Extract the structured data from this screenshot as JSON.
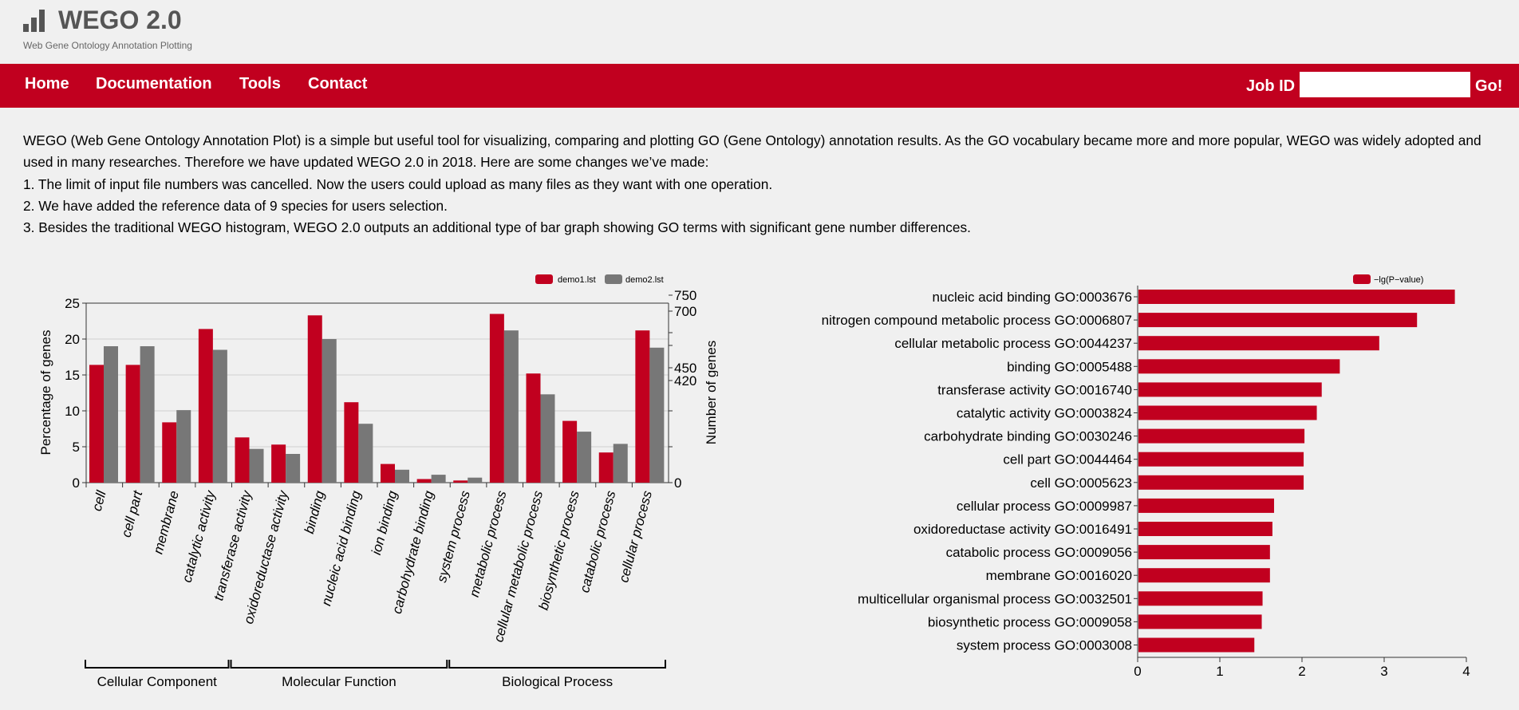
{
  "header": {
    "title": "WEGO 2.0",
    "subtitle": "Web Gene Ontology Annotation Plotting",
    "logo_icon": "bar-chart-logo-icon"
  },
  "nav": {
    "items": [
      {
        "label": "Home"
      },
      {
        "label": "Documentation"
      },
      {
        "label": "Tools"
      },
      {
        "label": "Contact"
      }
    ],
    "jobid_label": "Job ID",
    "jobid_value": "",
    "go_label": "Go!"
  },
  "intro": {
    "paragraphs": [
      "WEGO (Web Gene Ontology Annotation Plot) is a simple but useful tool for visualizing, comparing and plotting GO (Gene Ontology) annotation results. As the GO vocabulary became more and more popular, WEGO was widely adopted and used in many researches. Therefore we have updated WEGO 2.0 in 2018. Here are some changes we’ve made:",
      "1. The limit of input file numbers was cancelled. Now the users could upload as many files as they want with one operation.",
      "2. We have added the reference data of 9 species for users selection.",
      "3. Besides the traditional WEGO histogram, WEGO 2.0 outputs an additional type of bar graph showing GO terms with significant gene number differences."
    ]
  },
  "colors": {
    "brand": "#c1001f",
    "series1": "#c1001f",
    "series2": "#777777"
  },
  "chart_data": [
    {
      "type": "bar",
      "categories": [
        "cell",
        "cell part",
        "membrane",
        "catalytic activity",
        "transferase activity",
        "oxidoreductase activity",
        "binding",
        "nucleic acid binding",
        "ion binding",
        "carbohydrate binding",
        "system process",
        "metabolic process",
        "cellular metabolic process",
        "biosynthetic process",
        "catabolic process",
        "cellular process"
      ],
      "series": [
        {
          "name": "demo1.lst",
          "values": [
            16.4,
            16.4,
            8.4,
            21.4,
            6.3,
            5.3,
            23.3,
            11.2,
            2.6,
            0.5,
            0.3,
            23.5,
            15.2,
            8.6,
            4.2,
            21.2
          ]
        },
        {
          "name": "demo2.lst",
          "values": [
            19.0,
            19.0,
            10.1,
            18.5,
            4.7,
            4.0,
            20.0,
            8.2,
            1.8,
            1.1,
            0.7,
            21.2,
            12.3,
            7.1,
            5.4,
            18.8
          ]
        }
      ],
      "xlabel": "",
      "ylabel": "Percentage of genes",
      "y2label": "Number of genes",
      "ylim": [
        0,
        25
      ],
      "yticks": [
        0,
        5,
        10,
        15,
        20,
        25
      ],
      "y2ticks": [
        "0",
        "420",
        "450",
        "700",
        "750"
      ],
      "groups": [
        {
          "label": "Cellular Component",
          "from": 0,
          "to": 3
        },
        {
          "label": "Molecular Function",
          "from": 4,
          "to": 9
        },
        {
          "label": "Biological Process",
          "from": 10,
          "to": 15
        }
      ],
      "grid": true,
      "legend": "top-right"
    },
    {
      "type": "bar",
      "orientation": "horizontal",
      "categories": [
        "nucleic acid binding GO:0003676",
        "nitrogen compound metabolic process GO:0006807",
        "cellular metabolic process GO:0044237",
        "binding GO:0005488",
        "transferase activity GO:0016740",
        "catalytic activity GO:0003824",
        "carbohydrate binding GO:0030246",
        "cell part GO:0044464",
        "cell GO:0005623",
        "cellular process GO:0009987",
        "oxidoreductase activity GO:0016491",
        "catabolic process GO:0009056",
        "membrane GO:0016020",
        "multicellular organismal process GO:0032501",
        "biosynthetic process GO:0009058",
        "system process GO:0003008"
      ],
      "series": [
        {
          "name": "−lg(P−value)",
          "values": [
            3.86,
            3.4,
            2.94,
            2.46,
            2.24,
            2.18,
            2.03,
            2.02,
            2.02,
            1.66,
            1.64,
            1.61,
            1.61,
            1.52,
            1.51,
            1.42
          ]
        }
      ],
      "xlim": [
        0,
        4
      ],
      "xticks": [
        0,
        1,
        2,
        3,
        4
      ],
      "legend": "top-right"
    }
  ]
}
